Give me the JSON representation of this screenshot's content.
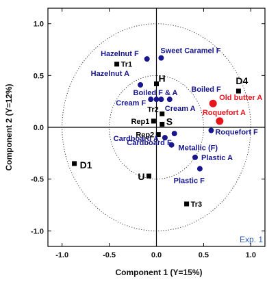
{
  "chart_data": {
    "type": "scatter",
    "xlabel": "Component 1 (Y=15%)",
    "ylabel": "Component 2 (Y=12%)",
    "xlim": [
      -1.15,
      1.15
    ],
    "ylim": [
      -1.15,
      1.15
    ],
    "x_ticks": [
      -1.0,
      -0.5,
      0.0,
      0.5,
      1.0
    ],
    "x_tick_labels": [
      "-1.0",
      "-0.5",
      "0.0",
      "0.5",
      "1.0"
    ],
    "y_ticks": [
      -1.0,
      -0.5,
      0.0,
      0.5,
      1.0
    ],
    "y_tick_labels": [
      "-1.0",
      "-0.5",
      "0.0",
      "0.5",
      "1.0"
    ],
    "panel_label": "Exp. 1",
    "circles": [
      1.0,
      0.5
    ],
    "grid": false,
    "colors": {
      "attribute": "#17168c",
      "highlight": "#e8141c",
      "product": "#000000",
      "panel_label": "#2e5db3"
    },
    "series": [
      {
        "name": "Attributes",
        "marker": "circle",
        "color": "#17168c",
        "points": [
          {
            "label": "Hazelnut F",
            "x": -0.1,
            "y": 0.66
          },
          {
            "label": "Sweet Caramel F",
            "x": 0.05,
            "y": 0.67
          },
          {
            "label": "Hazelnut A",
            "x": -0.17,
            "y": 0.41
          },
          {
            "label": "Boiled F & A",
            "x": 0.0,
            "y": 0.27
          },
          {
            "label": "Cream F",
            "x": -0.06,
            "y": 0.27
          },
          {
            "label": "Cream A",
            "x": 0.14,
            "y": 0.27
          },
          {
            "label": "Boiled F",
            "x": 0.05,
            "y": 0.27
          },
          {
            "label": "Cardboard A",
            "x": 0.09,
            "y": -0.1
          },
          {
            "label": "Metallic (F)",
            "x": 0.16,
            "y": -0.17
          },
          {
            "label": "Cardboard F",
            "x": 0.19,
            "y": -0.06
          },
          {
            "label": "Plastic A",
            "x": 0.41,
            "y": -0.29
          },
          {
            "label": "Plastic F",
            "x": 0.46,
            "y": -0.4
          },
          {
            "label": "Roquefort F",
            "x": 0.58,
            "y": -0.03
          }
        ]
      },
      {
        "name": "Highlighted attributes",
        "marker": "circle",
        "color": "#e8141c",
        "points": [
          {
            "label": "Old butter A",
            "x": 0.6,
            "y": 0.23
          },
          {
            "label": "Roquefort A",
            "x": 0.67,
            "y": 0.06
          }
        ]
      },
      {
        "name": "Products",
        "marker": "square",
        "color": "#000000",
        "points": [
          {
            "label": "Tr1",
            "x": -0.42,
            "y": 0.61
          },
          {
            "label": "H",
            "x": 0.0,
            "y": 0.42
          },
          {
            "label": "D4",
            "x": 0.87,
            "y": 0.35
          },
          {
            "label": "Tr2",
            "x": 0.06,
            "y": 0.13
          },
          {
            "label": "Rep1",
            "x": -0.03,
            "y": 0.06
          },
          {
            "label": "S",
            "x": 0.06,
            "y": 0.03
          },
          {
            "label": "Rep2",
            "x": 0.02,
            "y": -0.07
          },
          {
            "label": "D1",
            "x": -0.87,
            "y": -0.35
          },
          {
            "label": "U",
            "x": -0.08,
            "y": -0.47
          },
          {
            "label": "Tr3",
            "x": 0.32,
            "y": -0.74
          }
        ]
      }
    ]
  }
}
